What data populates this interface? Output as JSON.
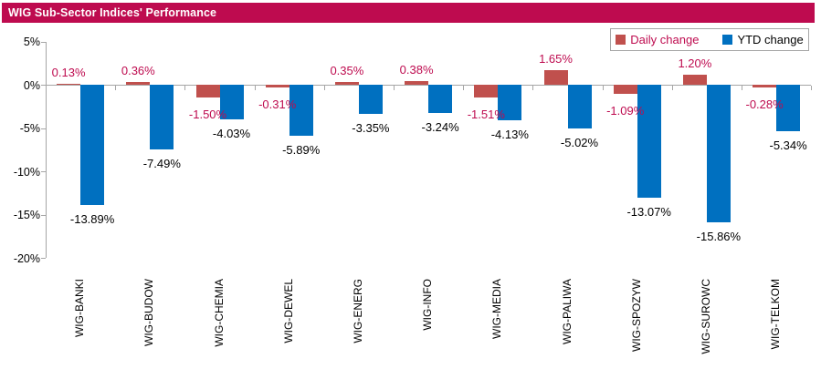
{
  "header": {
    "title": "WIG Sub-Sector Indices' Performance"
  },
  "legend": {
    "items": [
      {
        "label": "Daily change",
        "swatch_color": "#C0504D",
        "text_color": "#BE0B4F"
      },
      {
        "label": "YTD change",
        "swatch_color": "#0070C0",
        "text_color": "#000000"
      }
    ]
  },
  "chart_data": {
    "type": "bar",
    "title": "WIG Sub-Sector Indices' Performance",
    "categories": [
      "WIG-BANKI",
      "WIG-BUDOW",
      "WIG-CHEMIA",
      "WIG-DEWEL",
      "WIG-ENERG",
      "WIG-INFO",
      "WIG-MEDIA",
      "WIG-PALIWA",
      "WIG-SPOZYW",
      "WIG-SUROWC",
      "WIG-TELKOM"
    ],
    "series": [
      {
        "name": "Daily change",
        "color": "#C0504D",
        "label_color": "#BE0B4F",
        "values": [
          0.13,
          0.36,
          -1.5,
          -0.31,
          0.35,
          0.38,
          -1.51,
          1.65,
          -1.09,
          1.2,
          -0.28
        ]
      },
      {
        "name": "YTD change",
        "color": "#0070C0",
        "label_color": "#000000",
        "values": [
          -13.89,
          -7.49,
          -4.03,
          -5.89,
          -3.35,
          -3.24,
          -4.13,
          -5.02,
          -13.07,
          -15.86,
          -5.34
        ]
      }
    ],
    "ylabel": "",
    "ylim": [
      -20,
      5
    ],
    "yticks": [
      5,
      0,
      -5,
      -10,
      -15,
      -20
    ],
    "ytick_labels": [
      "5%",
      "0%",
      "-5%",
      "-10%",
      "-15%",
      "-20%"
    ],
    "value_suffix": "%",
    "value_decimals": 2,
    "grid": false,
    "legend_position": "top-right"
  },
  "colors": {
    "header_bg": "#BE0B4F",
    "axis": "#A6A6A6"
  }
}
